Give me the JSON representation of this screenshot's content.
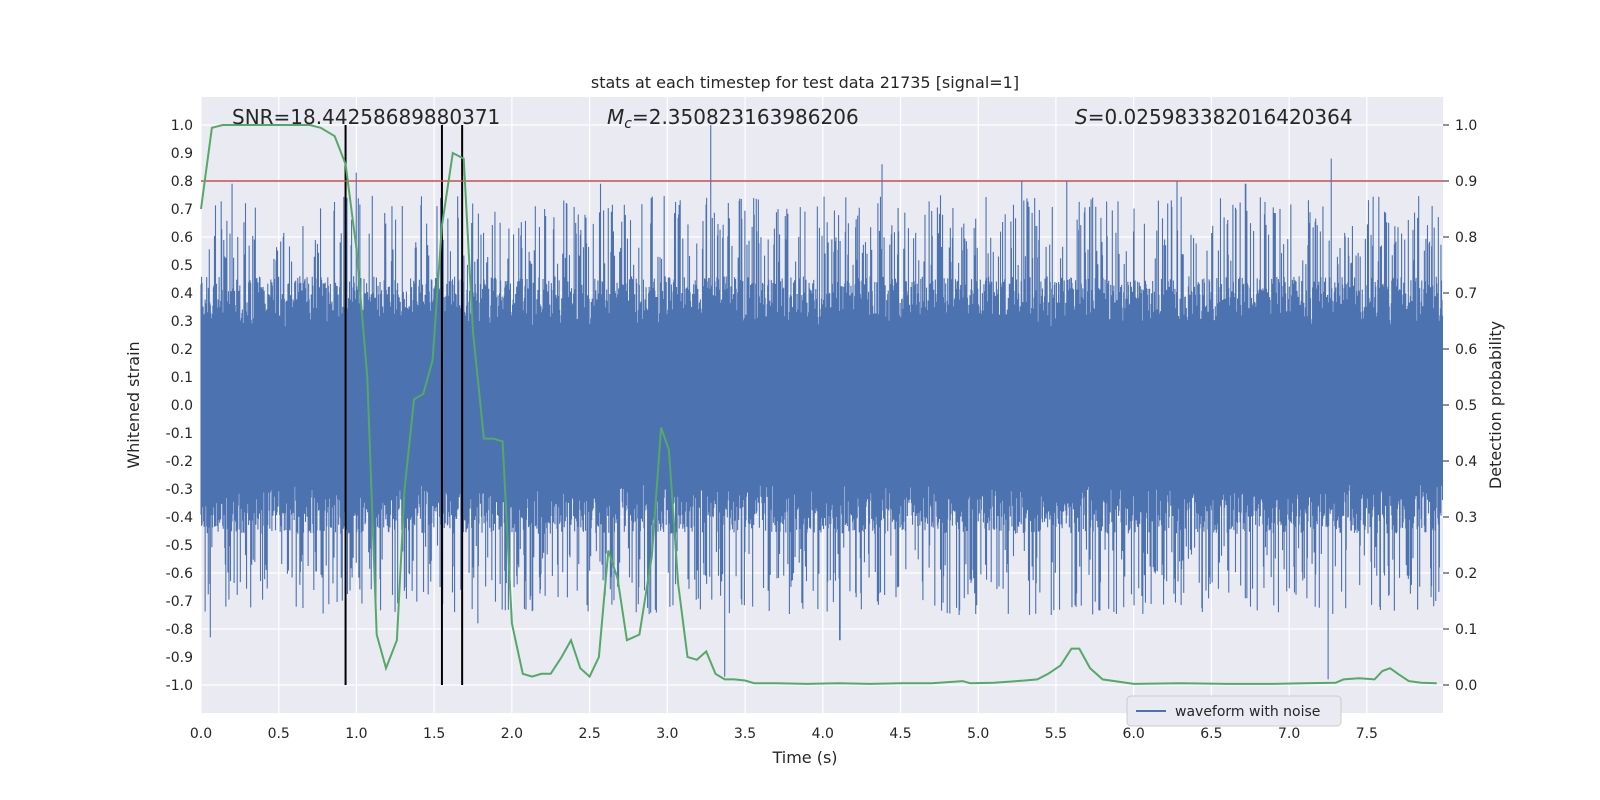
{
  "chart_data": {
    "type": "line",
    "title": "stats at each timestep for test data 21735 [signal=1]",
    "xlabel": "Time (s)",
    "ylabel": "Whitened strain",
    "y2label": "Detection probability",
    "xlim": [
      0.0,
      7.99
    ],
    "ylim": [
      -1.1,
      1.1
    ],
    "y2lim": [
      -0.05,
      1.05
    ],
    "xticks": [
      0.0,
      0.5,
      1.0,
      1.5,
      2.0,
      2.5,
      3.0,
      3.5,
      4.0,
      4.5,
      5.0,
      5.5,
      6.0,
      6.5,
      7.0,
      7.5
    ],
    "yticks": [
      -1.0,
      -0.9,
      -0.8,
      -0.7,
      -0.6,
      -0.5,
      -0.4,
      -0.3,
      -0.2,
      -0.1,
      0.0,
      0.1,
      0.2,
      0.3,
      0.4,
      0.5,
      0.6,
      0.7,
      0.8,
      0.9,
      1.0
    ],
    "y2ticks": [
      0.0,
      0.1,
      0.2,
      0.3,
      0.4,
      0.5,
      0.6,
      0.7,
      0.8,
      0.9,
      1.0
    ],
    "grid": true,
    "annotations": {
      "snr": "SNR=18.44258689880371",
      "mc_symbol": "M",
      "mc_sub": "c",
      "mc_value": "=2.350823163986206",
      "s_symbol": "S",
      "s_value": "=0.025983382016420364"
    },
    "threshold": {
      "y2": 0.9,
      "color": "#c44e52"
    },
    "markers": {
      "x": [
        0.93,
        1.55,
        1.68
      ],
      "color": "#000000"
    },
    "waveform": {
      "name": "waveform with noise",
      "color": "#4c72b0",
      "envelope_typical": 0.4,
      "envelope_spikes": [
        {
          "x": 0.06,
          "y": -0.83
        },
        {
          "x": 0.2,
          "y": 0.79
        },
        {
          "x": 0.16,
          "y": -0.72
        },
        {
          "x": 1.0,
          "y": 0.83
        },
        {
          "x": 1.78,
          "y": -0.78
        },
        {
          "x": 3.28,
          "y": 1.0
        },
        {
          "x": 3.37,
          "y": -0.97
        },
        {
          "x": 4.11,
          "y": -0.84
        },
        {
          "x": 4.38,
          "y": 0.86
        },
        {
          "x": 7.27,
          "y": 0.88
        },
        {
          "x": 7.25,
          "y": -0.98
        },
        {
          "x": 2.57,
          "y": 0.79
        },
        {
          "x": 5.28,
          "y": 0.8
        },
        {
          "x": 5.57,
          "y": 0.8
        },
        {
          "x": 6.28,
          "y": 0.8
        },
        {
          "x": 6.72,
          "y": 0.79
        },
        {
          "x": 5.47,
          "y": -0.75
        },
        {
          "x": 6.93,
          "y": -0.74
        }
      ]
    },
    "probability": {
      "color": "#55a868",
      "x": [
        0.0,
        0.07,
        0.14,
        0.22,
        0.3,
        0.39,
        0.5,
        0.6,
        0.7,
        0.77,
        0.86,
        0.93,
        1.0,
        1.07,
        1.13,
        1.19,
        1.26,
        1.31,
        1.37,
        1.43,
        1.49,
        1.55,
        1.62,
        1.69,
        1.75,
        1.82,
        1.88,
        1.94,
        2.0,
        2.07,
        2.13,
        2.19,
        2.25,
        2.32,
        2.38,
        2.44,
        2.5,
        2.56,
        2.62,
        2.68,
        2.74,
        2.82,
        2.9,
        2.96,
        3.01,
        3.07,
        3.13,
        3.19,
        3.25,
        3.31,
        3.37,
        3.43,
        3.5,
        3.56,
        3.7,
        3.9,
        4.1,
        4.3,
        4.5,
        4.7,
        4.9,
        4.95,
        5.1,
        5.3,
        5.38,
        5.45,
        5.53,
        5.6,
        5.65,
        5.72,
        5.8,
        6.0,
        6.3,
        6.6,
        6.9,
        7.1,
        7.3,
        7.35,
        7.45,
        7.55,
        7.6,
        7.65,
        7.7,
        7.77,
        7.85,
        7.95
      ],
      "y": [
        0.85,
        0.995,
        1.0,
        1.0,
        1.0,
        1.0,
        1.0,
        1.0,
        1.0,
        0.995,
        0.98,
        0.93,
        0.78,
        0.55,
        0.09,
        0.03,
        0.08,
        0.35,
        0.51,
        0.52,
        0.58,
        0.82,
        0.95,
        0.94,
        0.63,
        0.44,
        0.44,
        0.435,
        0.11,
        0.02,
        0.015,
        0.02,
        0.02,
        0.05,
        0.08,
        0.03,
        0.015,
        0.05,
        0.24,
        0.19,
        0.08,
        0.09,
        0.23,
        0.46,
        0.42,
        0.18,
        0.05,
        0.045,
        0.06,
        0.02,
        0.01,
        0.01,
        0.008,
        0.003,
        0.003,
        0.002,
        0.003,
        0.002,
        0.003,
        0.003,
        0.007,
        0.003,
        0.004,
        0.008,
        0.01,
        0.02,
        0.035,
        0.065,
        0.065,
        0.03,
        0.01,
        0.002,
        0.003,
        0.002,
        0.002,
        0.003,
        0.004,
        0.01,
        0.012,
        0.01,
        0.025,
        0.03,
        0.02,
        0.007,
        0.004,
        0.003
      ]
    }
  }
}
